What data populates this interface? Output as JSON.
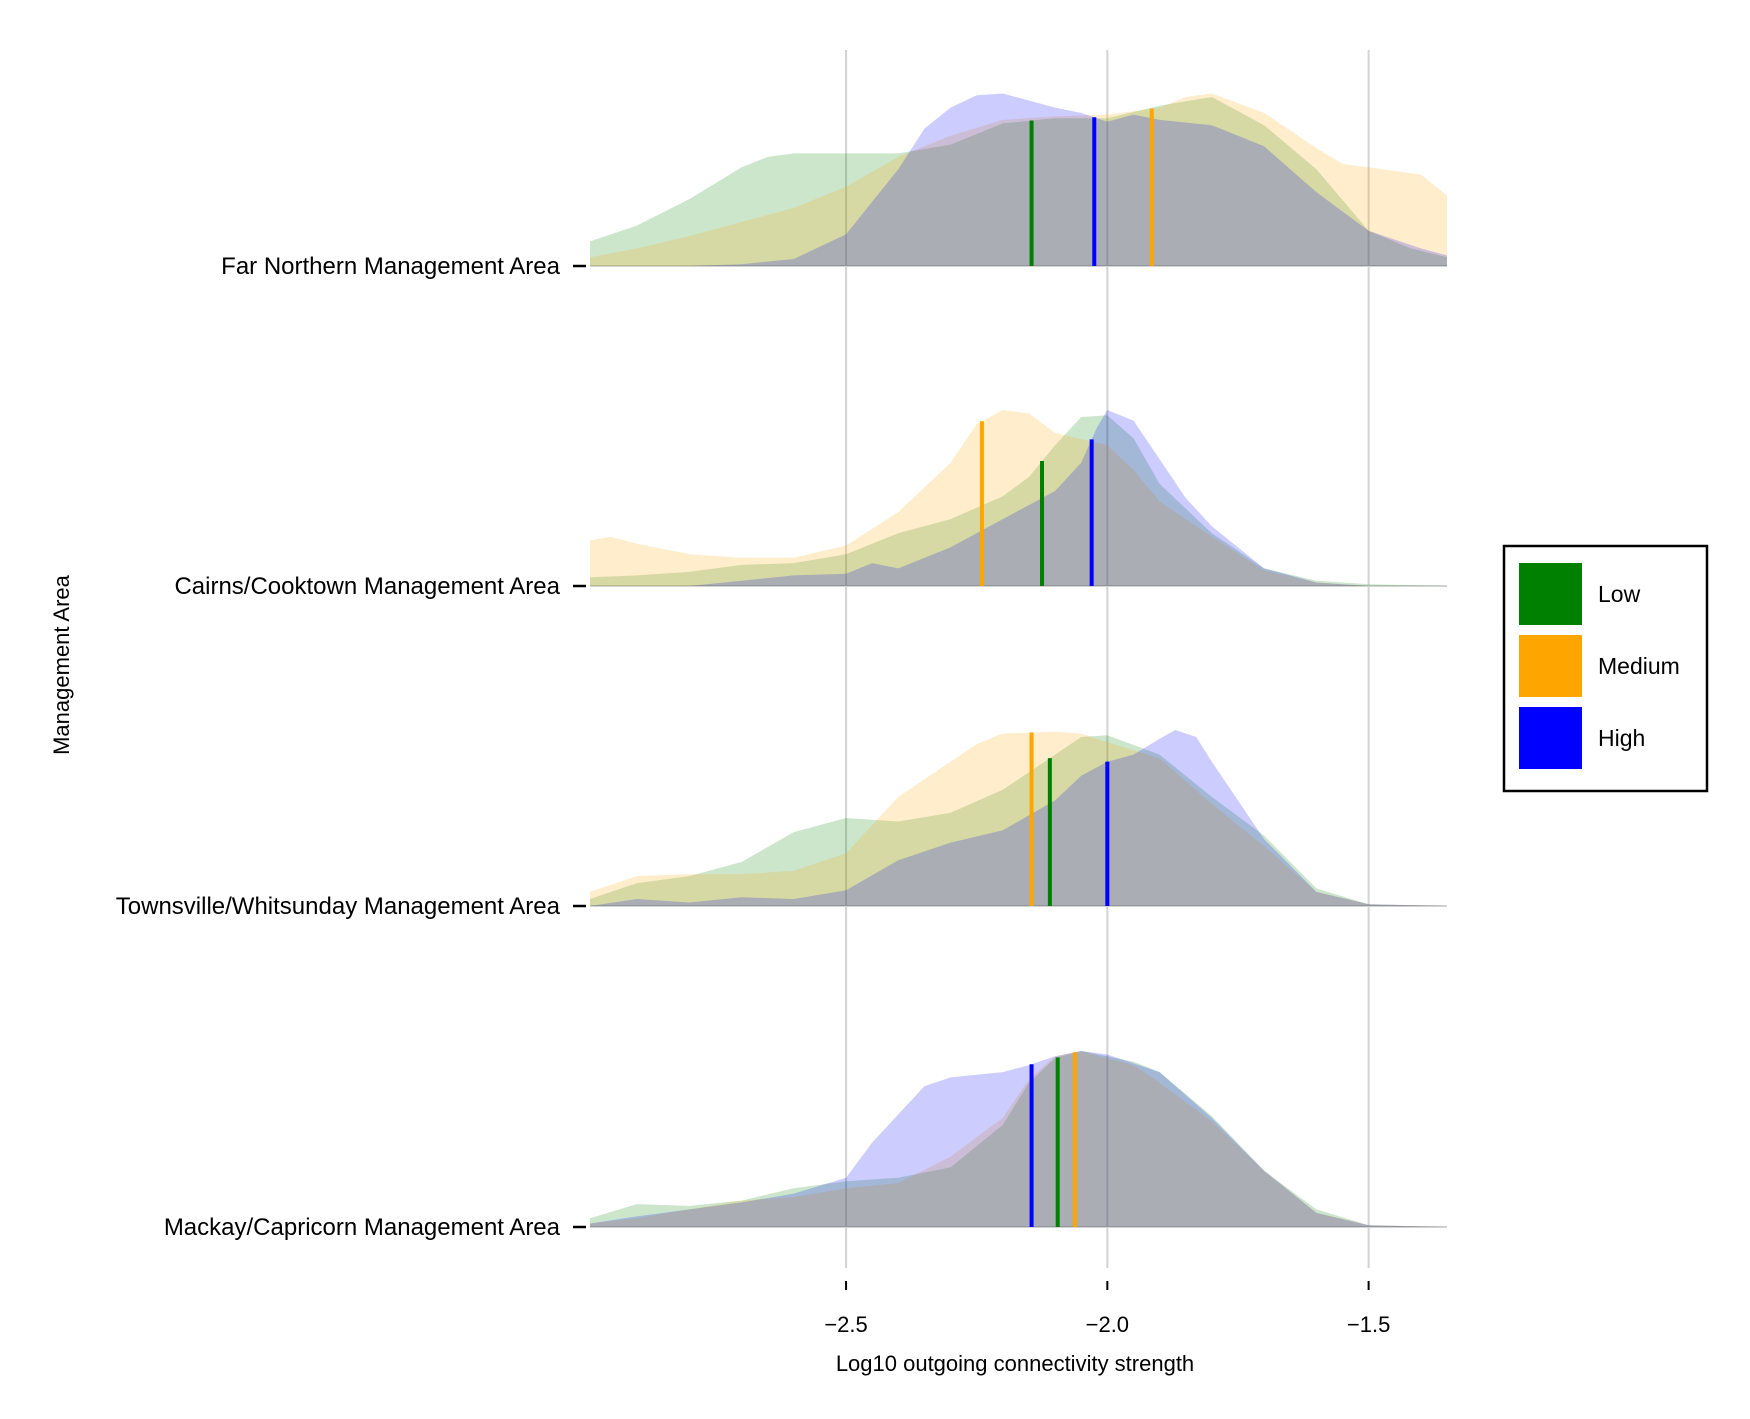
{
  "chart_data": {
    "type": "area",
    "title": "",
    "xlabel": "Log10 outgoing connectivity strength",
    "ylabel": "Management Area",
    "xlim": [
      -2.99,
      -1.35
    ],
    "xticks": [
      {
        "value": -2.5,
        "label": "−2.5"
      },
      {
        "value": -2.0,
        "label": "−2.0"
      },
      {
        "value": -1.5,
        "label": "−1.5"
      }
    ],
    "grid": "vertical",
    "legend": {
      "placement": "right",
      "entries": [
        {
          "name": "Low",
          "color": "#008000"
        },
        {
          "name": "Medium",
          "color": "#FFA500"
        },
        {
          "name": "High",
          "color": "#0000FF"
        }
      ]
    },
    "draw_order": [
      "Low",
      "Medium",
      "High"
    ],
    "areas": [
      {
        "label": "Far Northern Management Area",
        "densities": {
          "Low": [
            [
              -2.99,
              0.14
            ],
            [
              -2.9,
              0.23
            ],
            [
              -2.8,
              0.38
            ],
            [
              -2.7,
              0.56
            ],
            [
              -2.65,
              0.62
            ],
            [
              -2.6,
              0.64
            ],
            [
              -2.5,
              0.64
            ],
            [
              -2.4,
              0.64
            ],
            [
              -2.3,
              0.69
            ],
            [
              -2.2,
              0.81
            ],
            [
              -2.1,
              0.84
            ],
            [
              -2.0,
              0.84
            ],
            [
              -1.9,
              0.91
            ],
            [
              -1.8,
              0.96
            ],
            [
              -1.7,
              0.8
            ],
            [
              -1.6,
              0.55
            ],
            [
              -1.5,
              0.2
            ],
            [
              -1.42,
              0.1
            ],
            [
              -1.35,
              0.05
            ]
          ],
          "Medium": [
            [
              -2.99,
              0.05
            ],
            [
              -2.9,
              0.1
            ],
            [
              -2.8,
              0.17
            ],
            [
              -2.7,
              0.25
            ],
            [
              -2.6,
              0.33
            ],
            [
              -2.5,
              0.45
            ],
            [
              -2.4,
              0.62
            ],
            [
              -2.3,
              0.74
            ],
            [
              -2.2,
              0.83
            ],
            [
              -2.1,
              0.85
            ],
            [
              -2.0,
              0.86
            ],
            [
              -1.9,
              0.9
            ],
            [
              -1.85,
              0.96
            ],
            [
              -1.8,
              0.98
            ],
            [
              -1.7,
              0.87
            ],
            [
              -1.6,
              0.67
            ],
            [
              -1.55,
              0.58
            ],
            [
              -1.5,
              0.56
            ],
            [
              -1.4,
              0.52
            ],
            [
              -1.35,
              0.4
            ]
          ],
          "High": [
            [
              -2.99,
              0.0
            ],
            [
              -2.8,
              0.0
            ],
            [
              -2.7,
              0.01
            ],
            [
              -2.6,
              0.04
            ],
            [
              -2.5,
              0.18
            ],
            [
              -2.4,
              0.55
            ],
            [
              -2.35,
              0.78
            ],
            [
              -2.3,
              0.9
            ],
            [
              -2.25,
              0.97
            ],
            [
              -2.2,
              0.98
            ],
            [
              -2.1,
              0.9
            ],
            [
              -2.05,
              0.87
            ],
            [
              -2.0,
              0.82
            ],
            [
              -1.95,
              0.86
            ],
            [
              -1.9,
              0.83
            ],
            [
              -1.8,
              0.8
            ],
            [
              -1.7,
              0.68
            ],
            [
              -1.6,
              0.42
            ],
            [
              -1.5,
              0.2
            ],
            [
              -1.4,
              0.1
            ],
            [
              -1.35,
              0.06
            ]
          ]
        },
        "means": {
          "Low": -2.145,
          "Medium": -1.915,
          "High": -2.025
        }
      },
      {
        "label": "Cairns/Cooktown Management Area",
        "densities": {
          "Low": [
            [
              -2.99,
              0.05
            ],
            [
              -2.9,
              0.06
            ],
            [
              -2.8,
              0.08
            ],
            [
              -2.7,
              0.12
            ],
            [
              -2.6,
              0.13
            ],
            [
              -2.5,
              0.18
            ],
            [
              -2.4,
              0.3
            ],
            [
              -2.3,
              0.38
            ],
            [
              -2.2,
              0.51
            ],
            [
              -2.15,
              0.62
            ],
            [
              -2.1,
              0.8
            ],
            [
              -2.05,
              0.96
            ],
            [
              -2.0,
              0.97
            ],
            [
              -1.95,
              0.84
            ],
            [
              -1.9,
              0.58
            ],
            [
              -1.8,
              0.3
            ],
            [
              -1.7,
              0.1
            ],
            [
              -1.6,
              0.03
            ],
            [
              -1.5,
              0.01
            ],
            [
              -1.35,
              0.0
            ]
          ],
          "Medium": [
            [
              -2.99,
              0.26
            ],
            [
              -2.95,
              0.28
            ],
            [
              -2.9,
              0.24
            ],
            [
              -2.8,
              0.18
            ],
            [
              -2.7,
              0.16
            ],
            [
              -2.6,
              0.16
            ],
            [
              -2.5,
              0.23
            ],
            [
              -2.4,
              0.42
            ],
            [
              -2.3,
              0.7
            ],
            [
              -2.25,
              0.92
            ],
            [
              -2.2,
              1.0
            ],
            [
              -2.15,
              0.98
            ],
            [
              -2.1,
              0.87
            ],
            [
              -2.0,
              0.8
            ],
            [
              -1.95,
              0.66
            ],
            [
              -1.9,
              0.48
            ],
            [
              -1.8,
              0.28
            ],
            [
              -1.7,
              0.09
            ],
            [
              -1.6,
              0.02
            ],
            [
              -1.5,
              0.0
            ],
            [
              -1.35,
              0.0
            ]
          ],
          "High": [
            [
              -2.99,
              0.0
            ],
            [
              -2.8,
              0.0
            ],
            [
              -2.7,
              0.03
            ],
            [
              -2.6,
              0.06
            ],
            [
              -2.5,
              0.07
            ],
            [
              -2.45,
              0.13
            ],
            [
              -2.4,
              0.1
            ],
            [
              -2.3,
              0.22
            ],
            [
              -2.2,
              0.38
            ],
            [
              -2.1,
              0.54
            ],
            [
              -2.05,
              0.7
            ],
            [
              -2.02,
              0.9
            ],
            [
              -2.0,
              1.0
            ],
            [
              -1.95,
              0.94
            ],
            [
              -1.9,
              0.72
            ],
            [
              -1.85,
              0.5
            ],
            [
              -1.8,
              0.34
            ],
            [
              -1.7,
              0.1
            ],
            [
              -1.6,
              0.02
            ],
            [
              -1.5,
              0.0
            ],
            [
              -1.35,
              0.0
            ]
          ]
        },
        "means": {
          "Low": -2.125,
          "Medium": -2.24,
          "High": -2.03
        }
      },
      {
        "label": "Townsville/Whitsunday Management Area",
        "densities": {
          "Low": [
            [
              -2.99,
              0.04
            ],
            [
              -2.9,
              0.13
            ],
            [
              -2.8,
              0.17
            ],
            [
              -2.7,
              0.25
            ],
            [
              -2.6,
              0.42
            ],
            [
              -2.5,
              0.5
            ],
            [
              -2.4,
              0.48
            ],
            [
              -2.3,
              0.53
            ],
            [
              -2.2,
              0.66
            ],
            [
              -2.1,
              0.86
            ],
            [
              -2.05,
              0.96
            ],
            [
              -2.0,
              0.97
            ],
            [
              -1.9,
              0.86
            ],
            [
              -1.8,
              0.62
            ],
            [
              -1.7,
              0.4
            ],
            [
              -1.6,
              0.1
            ],
            [
              -1.5,
              0.01
            ],
            [
              -1.35,
              0.0
            ]
          ],
          "Medium": [
            [
              -2.99,
              0.08
            ],
            [
              -2.9,
              0.17
            ],
            [
              -2.8,
              0.18
            ],
            [
              -2.7,
              0.18
            ],
            [
              -2.6,
              0.2
            ],
            [
              -2.5,
              0.3
            ],
            [
              -2.45,
              0.46
            ],
            [
              -2.4,
              0.62
            ],
            [
              -2.3,
              0.82
            ],
            [
              -2.25,
              0.92
            ],
            [
              -2.2,
              0.98
            ],
            [
              -2.1,
              0.99
            ],
            [
              -2.05,
              0.98
            ],
            [
              -2.0,
              0.93
            ],
            [
              -1.9,
              0.84
            ],
            [
              -1.8,
              0.58
            ],
            [
              -1.7,
              0.34
            ],
            [
              -1.6,
              0.08
            ],
            [
              -1.5,
              0.01
            ],
            [
              -1.35,
              0.0
            ]
          ],
          "High": [
            [
              -2.99,
              0.0
            ],
            [
              -2.9,
              0.04
            ],
            [
              -2.8,
              0.02
            ],
            [
              -2.7,
              0.05
            ],
            [
              -2.6,
              0.04
            ],
            [
              -2.5,
              0.09
            ],
            [
              -2.4,
              0.26
            ],
            [
              -2.3,
              0.36
            ],
            [
              -2.2,
              0.43
            ],
            [
              -2.1,
              0.6
            ],
            [
              -2.05,
              0.74
            ],
            [
              -2.0,
              0.82
            ],
            [
              -1.95,
              0.86
            ],
            [
              -1.9,
              0.95
            ],
            [
              -1.87,
              1.0
            ],
            [
              -1.83,
              0.96
            ],
            [
              -1.8,
              0.82
            ],
            [
              -1.7,
              0.38
            ],
            [
              -1.6,
              0.08
            ],
            [
              -1.5,
              0.01
            ],
            [
              -1.35,
              0.0
            ]
          ]
        },
        "means": {
          "Low": -2.11,
          "Medium": -2.145,
          "High": -2.0
        }
      },
      {
        "label": "Mackay/Capricorn Management Area",
        "densities": {
          "Low": [
            [
              -2.99,
              0.05
            ],
            [
              -2.9,
              0.13
            ],
            [
              -2.8,
              0.12
            ],
            [
              -2.7,
              0.15
            ],
            [
              -2.6,
              0.22
            ],
            [
              -2.5,
              0.26
            ],
            [
              -2.4,
              0.28
            ],
            [
              -2.3,
              0.34
            ],
            [
              -2.2,
              0.58
            ],
            [
              -2.15,
              0.82
            ],
            [
              -2.1,
              0.96
            ],
            [
              -2.05,
              1.0
            ],
            [
              -1.95,
              0.94
            ],
            [
              -1.9,
              0.88
            ],
            [
              -1.8,
              0.63
            ],
            [
              -1.7,
              0.32
            ],
            [
              -1.6,
              0.1
            ],
            [
              -1.5,
              0.01
            ],
            [
              -1.35,
              0.0
            ]
          ],
          "Medium": [
            [
              -2.99,
              0.02
            ],
            [
              -2.9,
              0.05
            ],
            [
              -2.8,
              0.1
            ],
            [
              -2.7,
              0.15
            ],
            [
              -2.6,
              0.17
            ],
            [
              -2.5,
              0.22
            ],
            [
              -2.4,
              0.25
            ],
            [
              -2.3,
              0.4
            ],
            [
              -2.2,
              0.62
            ],
            [
              -2.15,
              0.84
            ],
            [
              -2.1,
              0.97
            ],
            [
              -2.05,
              1.0
            ],
            [
              -1.95,
              0.92
            ],
            [
              -1.9,
              0.82
            ],
            [
              -1.8,
              0.6
            ],
            [
              -1.7,
              0.32
            ],
            [
              -1.6,
              0.08
            ],
            [
              -1.5,
              0.01
            ],
            [
              -1.35,
              0.0
            ]
          ],
          "High": [
            [
              -2.99,
              0.02
            ],
            [
              -2.9,
              0.06
            ],
            [
              -2.8,
              0.1
            ],
            [
              -2.7,
              0.14
            ],
            [
              -2.6,
              0.19
            ],
            [
              -2.5,
              0.28
            ],
            [
              -2.45,
              0.48
            ],
            [
              -2.4,
              0.64
            ],
            [
              -2.35,
              0.8
            ],
            [
              -2.3,
              0.85
            ],
            [
              -2.2,
              0.88
            ],
            [
              -2.15,
              0.92
            ],
            [
              -2.1,
              0.97
            ],
            [
              -2.05,
              1.0
            ],
            [
              -2.0,
              0.98
            ],
            [
              -1.9,
              0.88
            ],
            [
              -1.8,
              0.62
            ],
            [
              -1.7,
              0.32
            ],
            [
              -1.6,
              0.08
            ],
            [
              -1.5,
              0.01
            ],
            [
              -1.35,
              0.0
            ]
          ]
        },
        "means": {
          "Low": -2.095,
          "Medium": -2.062,
          "High": -2.145
        }
      }
    ]
  }
}
